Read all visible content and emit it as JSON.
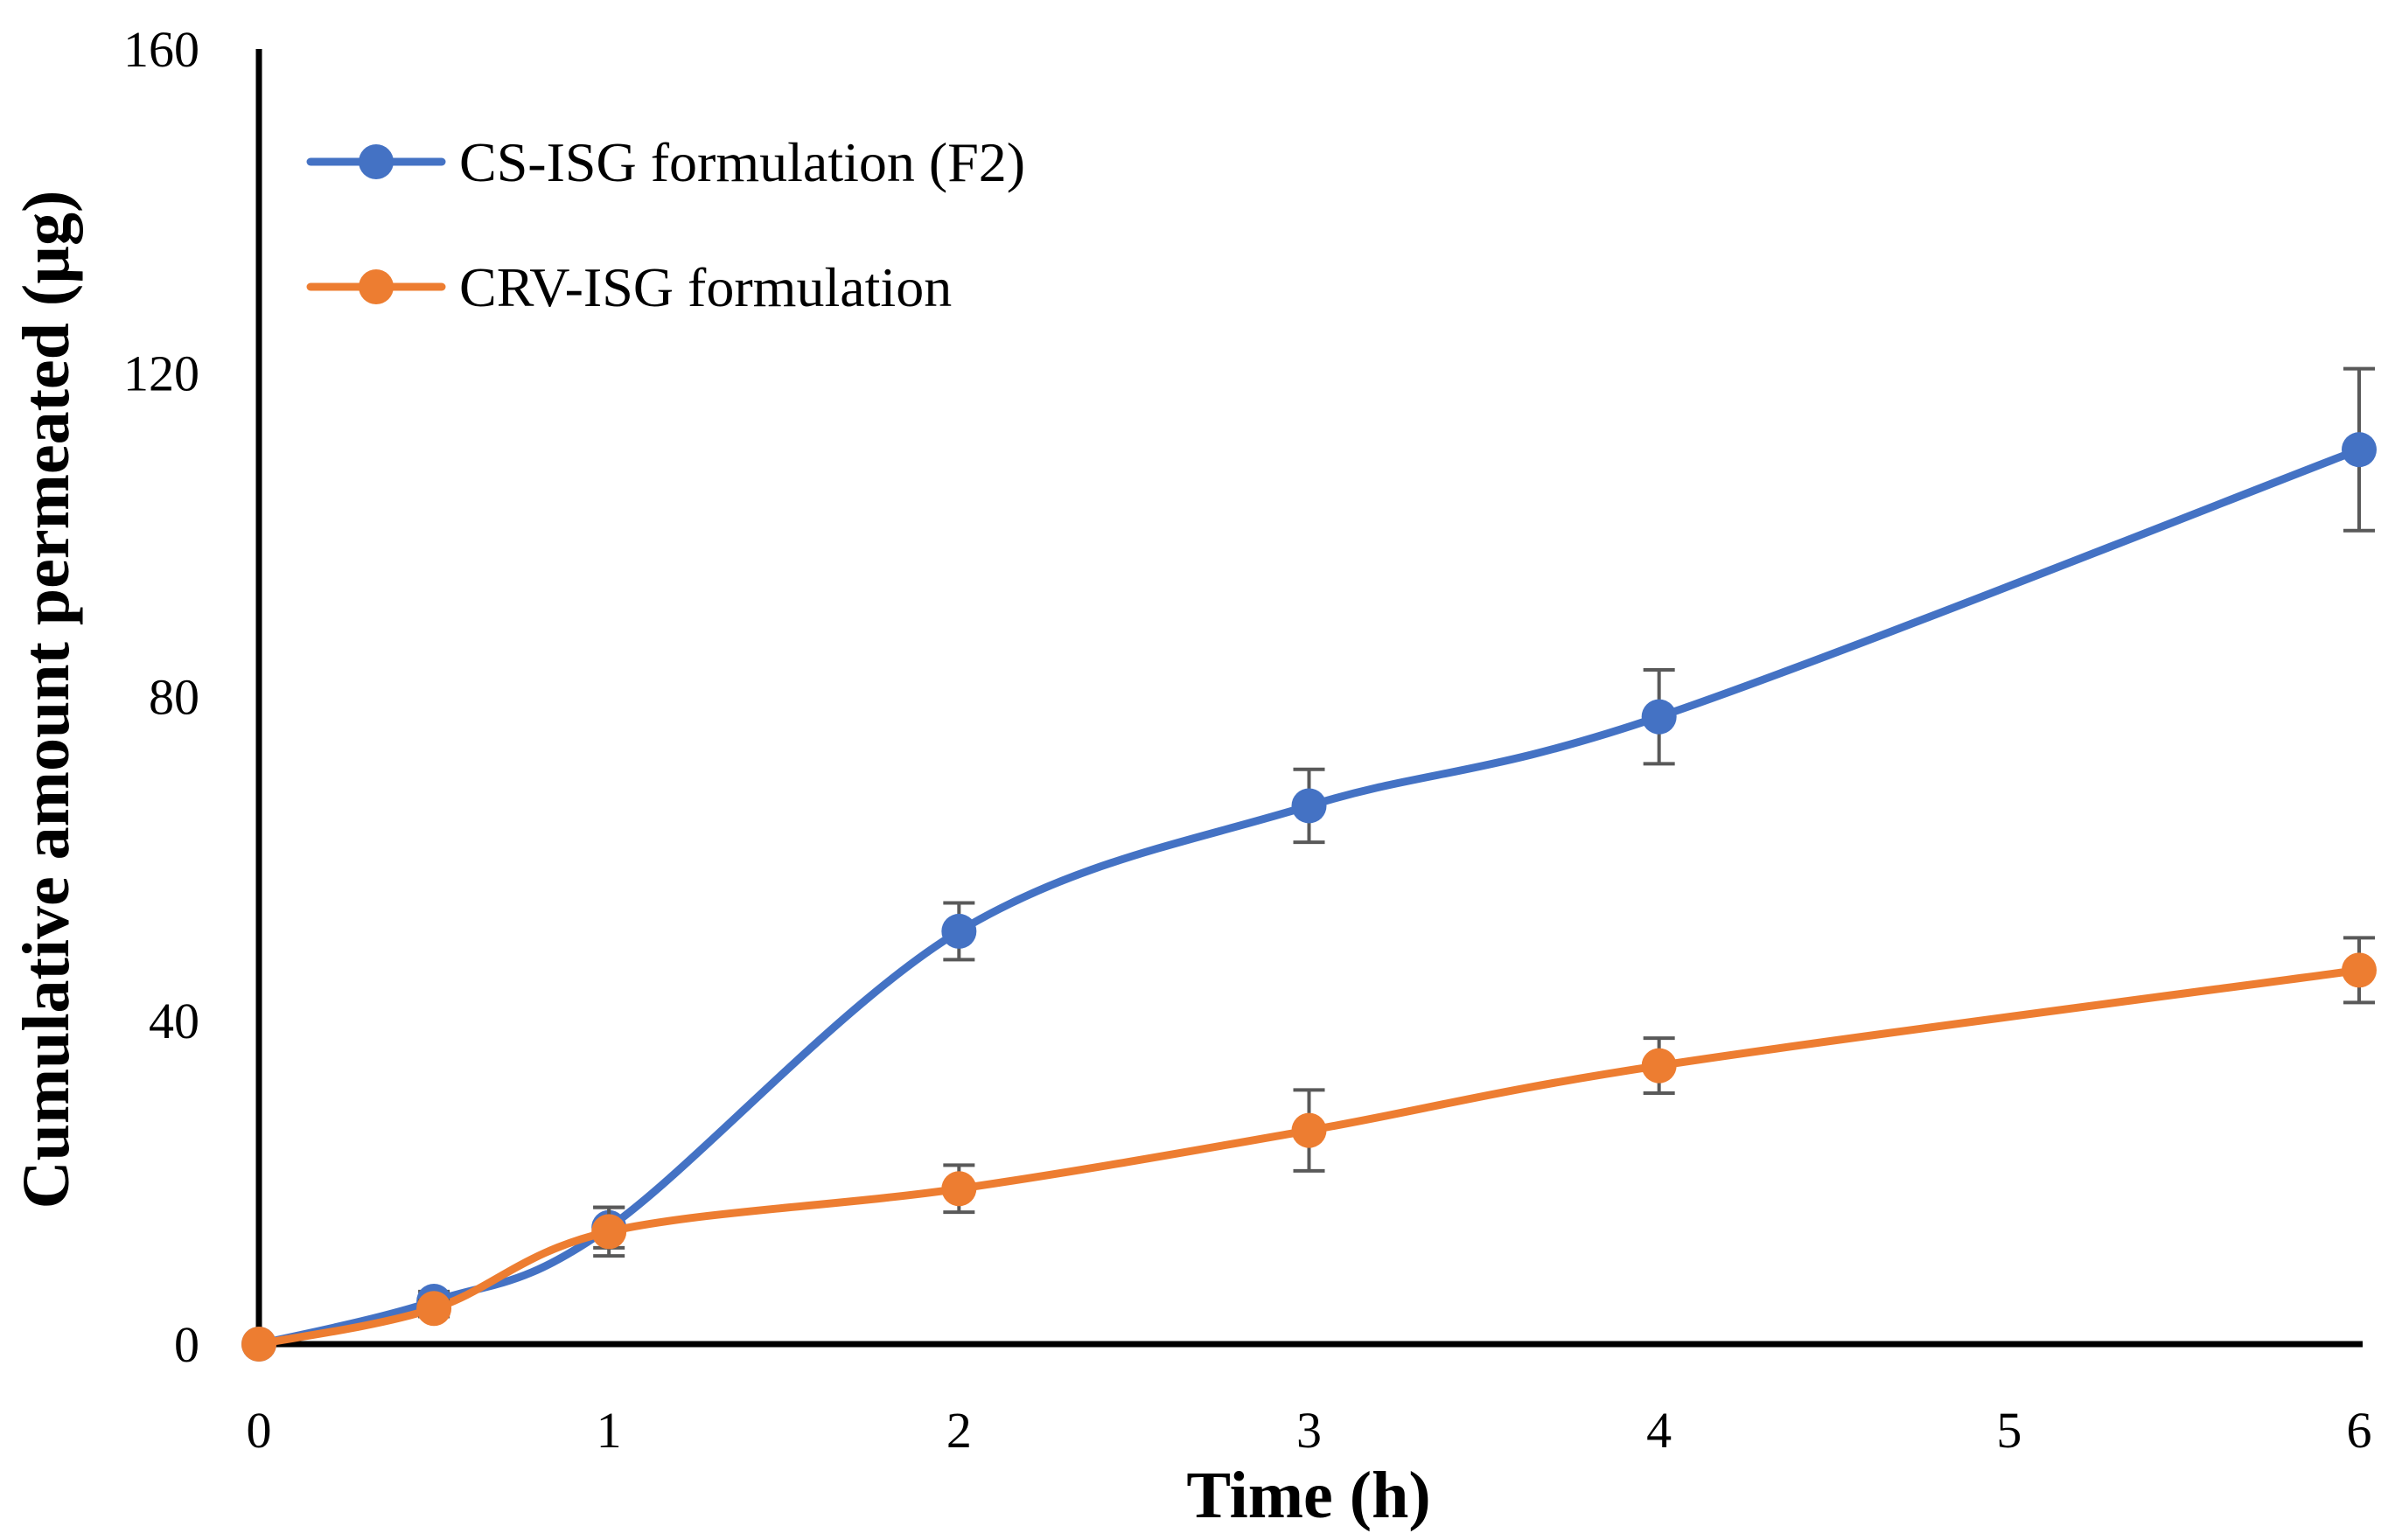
{
  "chart_data": {
    "type": "line",
    "title": "",
    "xlabel": "Time (h)",
    "ylabel": "Cumulative amount permeated (µg)",
    "xlim": [
      0,
      6
    ],
    "ylim": [
      0,
      160
    ],
    "xticks": [
      "0",
      "1",
      "2",
      "3",
      "4",
      "5",
      "6"
    ],
    "yticks": [
      "0",
      "40",
      "80",
      "120",
      "160"
    ],
    "grid": false,
    "legend_position": "top-left",
    "series": [
      {
        "name": "CS-ISG formulation (F2)",
        "color": "#4472C4",
        "x": [
          0,
          0.5,
          1,
          2,
          3,
          4,
          6
        ],
        "y": [
          0,
          5.3,
          14.4,
          51,
          66.5,
          77.5,
          110.5
        ],
        "error": [
          0,
          1.2,
          2.5,
          3.5,
          4.5,
          5.8,
          10
        ]
      },
      {
        "name": "CRV-ISG formulation",
        "color": "#ED7D31",
        "x": [
          0,
          0.5,
          1,
          2,
          3,
          4,
          6
        ],
        "y": [
          0,
          4.4,
          13.9,
          19.2,
          26.4,
          34.4,
          46.2
        ],
        "error": [
          0,
          1,
          3,
          2.9,
          5,
          3.4,
          4
        ]
      }
    ]
  }
}
